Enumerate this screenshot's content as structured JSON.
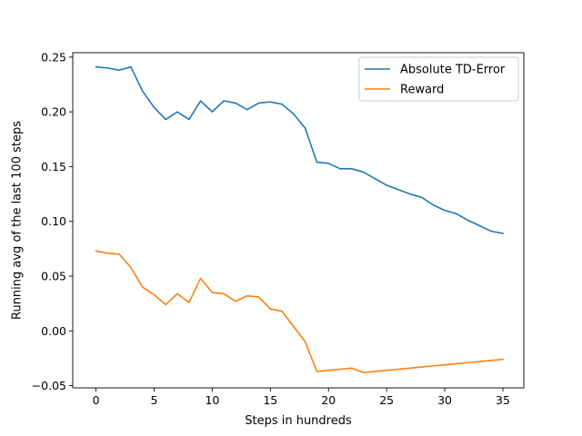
{
  "chart_data": {
    "type": "line",
    "xlabel": "Steps in hundreds",
    "ylabel": "Running  avg of the last 100 steps",
    "xlim": [
      -2.0,
      36.8
    ],
    "ylim": [
      -0.052,
      0.254
    ],
    "xticks": [
      0,
      5,
      10,
      15,
      20,
      25,
      30,
      35
    ],
    "yticks": [
      -0.05,
      0.0,
      0.05,
      0.1,
      0.15,
      0.2,
      0.25
    ],
    "ytick_labels": [
      "−0.05",
      "0.00",
      "0.05",
      "0.10",
      "0.15",
      "0.20",
      "0.25"
    ],
    "grid": false,
    "legend_position": "top-right",
    "x": [
      0,
      1,
      2,
      3,
      4,
      5,
      6,
      7,
      8,
      9,
      10,
      11,
      12,
      13,
      14,
      15,
      16,
      17,
      18,
      19,
      20,
      21,
      22,
      23,
      24,
      25,
      26,
      27,
      28,
      29,
      30,
      31,
      32,
      33,
      34,
      35
    ],
    "series": [
      {
        "name": "Absolute TD-Error",
        "color": "#1f77b4",
        "values": [
          0.241,
          0.24,
          0.238,
          0.241,
          0.219,
          0.204,
          0.193,
          0.2,
          0.193,
          0.21,
          0.2,
          0.21,
          0.208,
          0.202,
          0.208,
          0.209,
          0.207,
          0.198,
          0.185,
          0.154,
          0.153,
          0.148,
          0.148,
          0.145,
          0.139,
          0.133,
          0.129,
          0.125,
          0.122,
          0.115,
          0.11,
          0.107,
          0.101,
          0.096,
          0.091,
          0.089
        ]
      },
      {
        "name": "Reward",
        "color": "#ff7f0e",
        "values": [
          0.073,
          0.071,
          0.07,
          0.058,
          0.04,
          0.033,
          0.024,
          0.034,
          0.026,
          0.048,
          0.035,
          0.034,
          0.027,
          0.032,
          0.031,
          0.02,
          0.018,
          0.004,
          -0.01,
          -0.037,
          -0.036,
          -0.035,
          -0.034,
          -0.038,
          -0.037,
          -0.036,
          -0.035,
          -0.034,
          -0.033,
          -0.032,
          -0.031,
          -0.03,
          -0.029,
          -0.028,
          -0.027,
          -0.026
        ]
      }
    ]
  }
}
